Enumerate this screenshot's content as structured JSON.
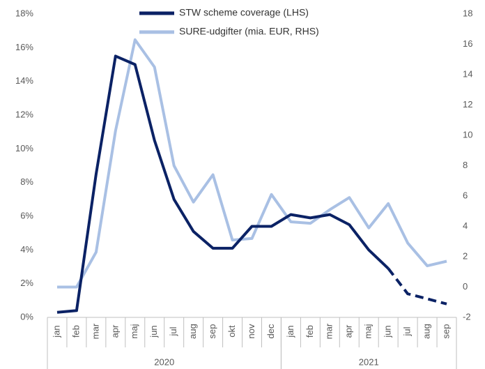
{
  "chart_data": {
    "type": "line",
    "categories": [
      "jan",
      "feb",
      "mar",
      "apr",
      "maj",
      "jun",
      "jul",
      "aug",
      "sep",
      "okt",
      "nov",
      "dec",
      "jan",
      "feb",
      "mar",
      "apr",
      "maj",
      "jun",
      "jul",
      "aug",
      "sep"
    ],
    "x_groups": [
      {
        "label": "2020",
        "start": 0,
        "end": 11
      },
      {
        "label": "2021",
        "start": 12,
        "end": 20
      }
    ],
    "series": [
      {
        "name": "STW scheme coverage (LHS)",
        "color": "#0b2265",
        "axis": "y",
        "dash_from_index": 17,
        "values": [
          0.3,
          0.4,
          8.5,
          15.5,
          15.0,
          10.5,
          7.0,
          5.1,
          4.1,
          4.1,
          5.4,
          5.4,
          6.1,
          5.9,
          6.1,
          5.5,
          4.0,
          2.9,
          1.4,
          1.1,
          0.8
        ]
      },
      {
        "name": "SURE-udgifter (mia. EUR, RHS)",
        "color": "#a9c0e4",
        "axis": "y2",
        "values": [
          0,
          0,
          2.3,
          10.3,
          16.3,
          14.5,
          8.0,
          5.6,
          7.4,
          3.1,
          3.2,
          6.1,
          4.3,
          4.2,
          5.1,
          5.9,
          3.9,
          5.5,
          2.9,
          1.4,
          1.7
        ]
      }
    ],
    "ylim": [
      0,
      18
    ],
    "yticks": [
      {
        "value": 0,
        "label": "0%"
      },
      {
        "value": 2,
        "label": "2%"
      },
      {
        "value": 4,
        "label": "4%"
      },
      {
        "value": 6,
        "label": "6%"
      },
      {
        "value": 8,
        "label": "8%"
      },
      {
        "value": 10,
        "label": "10%"
      },
      {
        "value": 12,
        "label": "12%"
      },
      {
        "value": 14,
        "label": "14%"
      },
      {
        "value": 16,
        "label": "16%"
      },
      {
        "value": 18,
        "label": "18%"
      }
    ],
    "y2lim": [
      -2,
      18
    ],
    "y2ticks": [
      -2,
      0,
      2,
      4,
      6,
      8,
      10,
      12,
      14,
      16,
      18
    ],
    "grid": false,
    "legend": "top"
  }
}
